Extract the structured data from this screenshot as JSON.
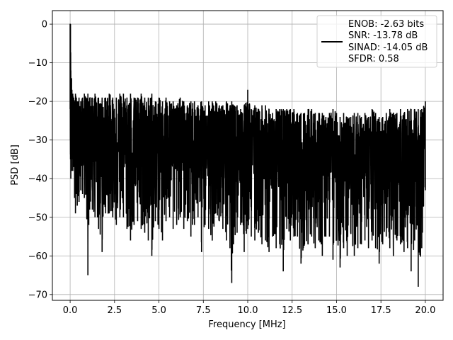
{
  "chart_data": {
    "type": "line",
    "title": "",
    "xlabel": "Frequency [MHz]",
    "ylabel": "PSD [dB]",
    "xlim": [
      -1.0,
      21.0
    ],
    "ylim": [
      -71.5,
      3.5
    ],
    "grid": true,
    "legend_placement": "top-right",
    "line_color": "#000000",
    "x_ticks": [
      {
        "value": 0.0,
        "label": "0.0"
      },
      {
        "value": 2.5,
        "label": "2.5"
      },
      {
        "value": 5.0,
        "label": "5.0"
      },
      {
        "value": 7.5,
        "label": "7.5"
      },
      {
        "value": 10.0,
        "label": "10.0"
      },
      {
        "value": 12.5,
        "label": "12.5"
      },
      {
        "value": 15.0,
        "label": "15.0"
      },
      {
        "value": 17.5,
        "label": "17.5"
      },
      {
        "value": 20.0,
        "label": "20.0"
      }
    ],
    "y_ticks": [
      {
        "value": 0,
        "label": "0"
      },
      {
        "value": -10,
        "label": "−10"
      },
      {
        "value": -20,
        "label": "−20"
      },
      {
        "value": -30,
        "label": "−30"
      },
      {
        "value": -40,
        "label": "−40"
      },
      {
        "value": -50,
        "label": "−50"
      },
      {
        "value": -60,
        "label": "−60"
      },
      {
        "value": -70,
        "label": "−70"
      }
    ],
    "legend_entries": [
      "ENOB: -2.63 bits",
      "SNR: -13.78 dB",
      "SINAD: -14.05 dB",
      "SFDR: 0.58"
    ],
    "series": [
      {
        "x": [
          0.0,
          0.02,
          0.04,
          0.06,
          0.08,
          0.1,
          0.15,
          0.2,
          0.25,
          0.3,
          0.35,
          0.4,
          0.45,
          0.5,
          0.6,
          0.7,
          0.8,
          0.9,
          1.0,
          1.05,
          1.1,
          1.25,
          1.4,
          1.6,
          1.8,
          2.0,
          2.2,
          2.4,
          2.6,
          2.8,
          3.0,
          3.2,
          3.4,
          3.6,
          3.8,
          4.0,
          4.2,
          4.4,
          4.6,
          4.8,
          5.0,
          5.2,
          5.4,
          5.6,
          5.8,
          6.0,
          6.2,
          6.4,
          6.6,
          6.8,
          7.0,
          7.2,
          7.4,
          7.6,
          7.8,
          8.0,
          8.2,
          8.4,
          8.6,
          8.8,
          9.0,
          9.1,
          9.2,
          9.4,
          9.6,
          9.8,
          10.0,
          10.2,
          10.4,
          10.6,
          10.8,
          11.0,
          11.2,
          11.4,
          11.6,
          11.8,
          12.0,
          12.2,
          12.4,
          12.6,
          12.8,
          13.0,
          13.2,
          13.4,
          13.6,
          13.8,
          14.0,
          14.2,
          14.4,
          14.6,
          14.8,
          15.0,
          15.2,
          15.4,
          15.6,
          15.8,
          16.0,
          16.2,
          16.4,
          16.6,
          16.8,
          17.0,
          17.2,
          17.4,
          17.6,
          17.8,
          18.0,
          18.2,
          18.4,
          18.6,
          18.8,
          19.0,
          19.2,
          19.4,
          19.6,
          19.8,
          20.0
        ],
        "max": [
          -22,
          0,
          -12,
          -15,
          -14,
          -17,
          -18,
          -19,
          -20,
          -18,
          -19,
          -20,
          -20,
          -19,
          -20,
          -19,
          -18,
          -19,
          -18,
          -20,
          -19,
          -19,
          -18,
          -19,
          -19,
          -19,
          -18,
          -19,
          -19,
          -18,
          -18,
          -19,
          -18,
          -19,
          -19,
          -18,
          -19,
          -19,
          -18,
          -20,
          -19,
          -20,
          -19,
          -20,
          -20,
          -21,
          -19,
          -20,
          -21,
          -20,
          -20,
          -21,
          -20,
          -21,
          -20,
          -20,
          -20,
          -21,
          -21,
          -20,
          -21,
          -20,
          -21,
          -21,
          -22,
          -21,
          -17,
          -22,
          -21,
          -22,
          -21,
          -21,
          -22,
          -23,
          -22,
          -22,
          -22,
          -22,
          -22,
          -22,
          -23,
          -23,
          -23,
          -22,
          -22,
          -23,
          -23,
          -23,
          -24,
          -23,
          -22,
          -23,
          -24,
          -23,
          -24,
          -24,
          -23,
          -23,
          -24,
          -23,
          -24,
          -22,
          -23,
          -24,
          -24,
          -23,
          -22,
          -23,
          -23,
          -22,
          -23,
          -22,
          -22,
          -22,
          -22,
          -22,
          -20
        ],
        "min": [
          -30,
          -35,
          -40,
          -33,
          -38,
          -35,
          -38,
          -37,
          -45,
          -49,
          -44,
          -47,
          -44,
          -46,
          -43,
          -44,
          -45,
          -44,
          -65,
          -52,
          -48,
          -48,
          -50,
          -53,
          -59,
          -49,
          -49,
          -50,
          -52,
          -50,
          -50,
          -53,
          -56,
          -52,
          -51,
          -53,
          -54,
          -56,
          -60,
          -51,
          -53,
          -56,
          -51,
          -50,
          -53,
          -52,
          -50,
          -53,
          -51,
          -55,
          -52,
          -50,
          -59,
          -52,
          -53,
          -56,
          -49,
          -51,
          -53,
          -56,
          -58,
          -67,
          -57,
          -54,
          -52,
          -59,
          -53,
          -55,
          -56,
          -54,
          -57,
          -56,
          -59,
          -55,
          -58,
          -57,
          -64,
          -53,
          -56,
          -55,
          -55,
          -62,
          -57,
          -57,
          -55,
          -58,
          -56,
          -60,
          -55,
          -55,
          -61,
          -56,
          -63,
          -58,
          -60,
          -54,
          -60,
          -58,
          -57,
          -56,
          -58,
          -56,
          -58,
          -62,
          -57,
          -55,
          -58,
          -60,
          -56,
          -57,
          -59,
          -58,
          -64,
          -56,
          -68,
          -58,
          -43
        ]
      }
    ]
  }
}
